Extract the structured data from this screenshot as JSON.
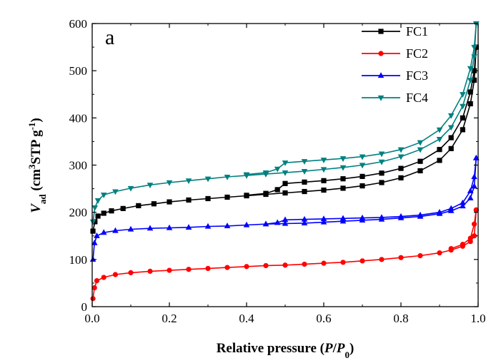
{
  "chart_data": {
    "type": "line",
    "panel_label": "a",
    "xlabel": {
      "main": "Relative pressure (",
      "italic1": "P",
      "slash": "/",
      "italic2": "P",
      "sub": "0",
      "close": ")"
    },
    "ylabel": {
      "v": "V",
      "v_sub": "ad",
      "open": " (cm",
      "cm_sup": "3",
      "stp": "STP g",
      "g_sup": "-1",
      "close": ")"
    },
    "xlim": [
      0.0,
      1.0
    ],
    "ylim": [
      0,
      600
    ],
    "xticks": [
      "0.0",
      "0.2",
      "0.4",
      "0.6",
      "0.8",
      "1.0"
    ],
    "yticks": [
      "0",
      "100",
      "200",
      "300",
      "400",
      "500",
      "600"
    ],
    "grid": false,
    "legend_position": "top-right",
    "series": [
      {
        "name": "FC1",
        "color": "#000000",
        "marker": "square",
        "adsorption": [
          [
            0.002,
            160
          ],
          [
            0.007,
            180
          ],
          [
            0.015,
            192
          ],
          [
            0.03,
            198
          ],
          [
            0.05,
            203
          ],
          [
            0.08,
            208
          ],
          [
            0.12,
            214
          ],
          [
            0.16,
            218
          ],
          [
            0.2,
            222
          ],
          [
            0.25,
            226
          ],
          [
            0.3,
            229
          ],
          [
            0.35,
            232
          ],
          [
            0.4,
            235
          ],
          [
            0.45,
            238
          ],
          [
            0.5,
            241
          ],
          [
            0.55,
            244
          ],
          [
            0.6,
            247
          ],
          [
            0.65,
            251
          ],
          [
            0.7,
            256
          ],
          [
            0.75,
            263
          ],
          [
            0.8,
            273
          ],
          [
            0.85,
            288
          ],
          [
            0.9,
            310
          ],
          [
            0.93,
            335
          ],
          [
            0.96,
            375
          ],
          [
            0.98,
            430
          ],
          [
            0.99,
            480
          ],
          [
            0.995,
            550
          ]
        ],
        "desorption": [
          [
            0.995,
            550
          ],
          [
            0.99,
            500
          ],
          [
            0.98,
            455
          ],
          [
            0.96,
            400
          ],
          [
            0.93,
            358
          ],
          [
            0.9,
            333
          ],
          [
            0.85,
            308
          ],
          [
            0.8,
            293
          ],
          [
            0.75,
            283
          ],
          [
            0.7,
            276
          ],
          [
            0.65,
            271
          ],
          [
            0.6,
            267
          ],
          [
            0.55,
            264
          ],
          [
            0.5,
            261
          ],
          [
            0.48,
            248
          ],
          [
            0.45,
            240
          ],
          [
            0.4,
            236
          ]
        ]
      },
      {
        "name": "FC2",
        "color": "#ff0000",
        "marker": "circle",
        "adsorption": [
          [
            0.002,
            17
          ],
          [
            0.006,
            40
          ],
          [
            0.012,
            55
          ],
          [
            0.03,
            62
          ],
          [
            0.06,
            68
          ],
          [
            0.1,
            72
          ],
          [
            0.15,
            75
          ],
          [
            0.2,
            77
          ],
          [
            0.25,
            79
          ],
          [
            0.3,
            81
          ],
          [
            0.35,
            83
          ],
          [
            0.4,
            85
          ],
          [
            0.45,
            87
          ],
          [
            0.5,
            88
          ],
          [
            0.55,
            90
          ],
          [
            0.6,
            92
          ],
          [
            0.65,
            94
          ],
          [
            0.7,
            97
          ],
          [
            0.75,
            100
          ],
          [
            0.8,
            104
          ],
          [
            0.85,
            108
          ],
          [
            0.9,
            114
          ],
          [
            0.93,
            120
          ],
          [
            0.96,
            128
          ],
          [
            0.98,
            138
          ],
          [
            0.99,
            150
          ],
          [
            0.995,
            205
          ]
        ],
        "desorption": [
          [
            0.995,
            205
          ],
          [
            0.99,
            175
          ],
          [
            0.98,
            145
          ],
          [
            0.96,
            132
          ],
          [
            0.93,
            123
          ]
        ]
      },
      {
        "name": "FC3",
        "color": "#0000ff",
        "marker": "triangle-up",
        "adsorption": [
          [
            0.002,
            100
          ],
          [
            0.006,
            135
          ],
          [
            0.012,
            150
          ],
          [
            0.03,
            157
          ],
          [
            0.06,
            161
          ],
          [
            0.1,
            164
          ],
          [
            0.15,
            166
          ],
          [
            0.2,
            167
          ],
          [
            0.25,
            168
          ],
          [
            0.3,
            170
          ],
          [
            0.35,
            171
          ],
          [
            0.4,
            173
          ],
          [
            0.45,
            175
          ],
          [
            0.5,
            176
          ],
          [
            0.55,
            177
          ],
          [
            0.6,
            179
          ],
          [
            0.65,
            181
          ],
          [
            0.7,
            183
          ],
          [
            0.75,
            185
          ],
          [
            0.8,
            188
          ],
          [
            0.85,
            191
          ],
          [
            0.9,
            197
          ],
          [
            0.93,
            203
          ],
          [
            0.96,
            213
          ],
          [
            0.98,
            230
          ],
          [
            0.99,
            255
          ],
          [
            0.995,
            315
          ]
        ],
        "desorption": [
          [
            0.995,
            315
          ],
          [
            0.99,
            275
          ],
          [
            0.98,
            245
          ],
          [
            0.96,
            220
          ],
          [
            0.93,
            208
          ],
          [
            0.9,
            200
          ],
          [
            0.85,
            194
          ],
          [
            0.8,
            191
          ],
          [
            0.75,
            189
          ],
          [
            0.7,
            188
          ],
          [
            0.65,
            187
          ],
          [
            0.6,
            186
          ],
          [
            0.55,
            185
          ],
          [
            0.5,
            184
          ],
          [
            0.48,
            178
          ],
          [
            0.45,
            175
          ]
        ]
      },
      {
        "name": "FC4",
        "color": "#008080",
        "marker": "triangle-down",
        "adsorption": [
          [
            0.002,
            180
          ],
          [
            0.007,
            210
          ],
          [
            0.015,
            225
          ],
          [
            0.03,
            237
          ],
          [
            0.06,
            244
          ],
          [
            0.1,
            251
          ],
          [
            0.15,
            258
          ],
          [
            0.2,
            263
          ],
          [
            0.25,
            267
          ],
          [
            0.3,
            271
          ],
          [
            0.35,
            275
          ],
          [
            0.4,
            278
          ],
          [
            0.45,
            281
          ],
          [
            0.5,
            284
          ],
          [
            0.55,
            287
          ],
          [
            0.6,
            291
          ],
          [
            0.65,
            295
          ],
          [
            0.7,
            300
          ],
          [
            0.75,
            307
          ],
          [
            0.8,
            318
          ],
          [
            0.85,
            333
          ],
          [
            0.9,
            355
          ],
          [
            0.93,
            380
          ],
          [
            0.96,
            425
          ],
          [
            0.98,
            480
          ],
          [
            0.99,
            530
          ],
          [
            0.995,
            600
          ]
        ],
        "desorption": [
          [
            0.995,
            600
          ],
          [
            0.99,
            550
          ],
          [
            0.98,
            505
          ],
          [
            0.96,
            450
          ],
          [
            0.93,
            405
          ],
          [
            0.9,
            375
          ],
          [
            0.85,
            348
          ],
          [
            0.8,
            333
          ],
          [
            0.75,
            324
          ],
          [
            0.7,
            318
          ],
          [
            0.65,
            314
          ],
          [
            0.6,
            311
          ],
          [
            0.55,
            308
          ],
          [
            0.5,
            305
          ],
          [
            0.48,
            292
          ],
          [
            0.45,
            284
          ],
          [
            0.4,
            280
          ]
        ]
      }
    ]
  }
}
